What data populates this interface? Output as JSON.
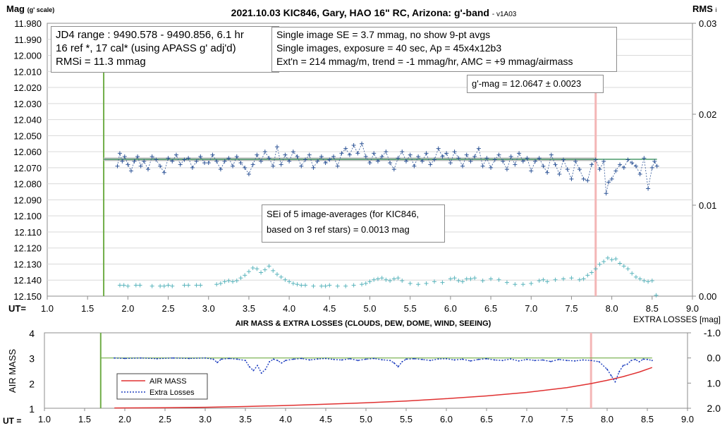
{
  "chart_data": [
    {
      "type": "scatter",
      "title": "2021.10.03 KIC846, Gary, HAO 16\" RC, Arizona: g'-band",
      "title_suffix": "- v1A03",
      "ylabel": "Mag",
      "ylabel_sub": "(g' scale)",
      "y2label": "RMS",
      "y2label_sub": "i",
      "xlabel": "UT=",
      "xlim": [
        1.0,
        9.0
      ],
      "ylim": [
        11.98,
        12.15
      ],
      "y_reversed": true,
      "y2lim": [
        0.0,
        0.03
      ],
      "x_ticks": [
        "1.0",
        "1.5",
        "2.0",
        "2.5",
        "3.0",
        "3.5",
        "4.0",
        "4.5",
        "5.0",
        "5.5",
        "6.0",
        "6.5",
        "7.0",
        "7.5",
        "8.0",
        "8.5",
        "9.0"
      ],
      "y_ticks": [
        "11.980",
        "11.990",
        "12.000",
        "12.010",
        "12.020",
        "12.030",
        "12.040",
        "12.050",
        "12.060",
        "12.070",
        "12.080",
        "12.090",
        "12.100",
        "12.110",
        "12.120",
        "12.130",
        "12.140",
        "12.150"
      ],
      "y2_ticks": [
        "0.03",
        "0.02",
        "0.01",
        "0.00"
      ],
      "grid": "horizontal",
      "series": [
        {
          "values_key": "g_mag_single",
          "color": "#2f5597",
          "marker": "+",
          "line": "dashed"
        },
        {
          "values_key": "rms",
          "color": "#5bb5bd",
          "marker": "+",
          "line": "none"
        }
      ],
      "g_mag_single": {
        "x": [
          1.87,
          1.9,
          1.93,
          1.96,
          2.0,
          2.04,
          2.08,
          2.12,
          2.16,
          2.2,
          2.25,
          2.3,
          2.35,
          2.4,
          2.45,
          2.5,
          2.55,
          2.6,
          2.65,
          2.7,
          2.75,
          2.8,
          2.85,
          2.9,
          2.95,
          3.0,
          3.05,
          3.1,
          3.15,
          3.2,
          3.25,
          3.3,
          3.35,
          3.4,
          3.45,
          3.5,
          3.55,
          3.6,
          3.65,
          3.7,
          3.75,
          3.8,
          3.85,
          3.9,
          3.95,
          4.0,
          4.05,
          4.1,
          4.15,
          4.2,
          4.25,
          4.3,
          4.35,
          4.4,
          4.45,
          4.5,
          4.55,
          4.6,
          4.65,
          4.7,
          4.75,
          4.8,
          4.85,
          4.9,
          4.95,
          5.0,
          5.05,
          5.1,
          5.15,
          5.2,
          5.25,
          5.3,
          5.35,
          5.4,
          5.45,
          5.5,
          5.55,
          5.6,
          5.65,
          5.7,
          5.75,
          5.8,
          5.85,
          5.9,
          5.95,
          6.0,
          6.05,
          6.1,
          6.15,
          6.2,
          6.25,
          6.3,
          6.35,
          6.4,
          6.45,
          6.5,
          6.55,
          6.6,
          6.65,
          6.7,
          6.75,
          6.8,
          6.85,
          6.9,
          6.95,
          7.0,
          7.05,
          7.1,
          7.15,
          7.2,
          7.25,
          7.3,
          7.35,
          7.4,
          7.45,
          7.5,
          7.55,
          7.6,
          7.65,
          7.7,
          7.75,
          7.8,
          7.85,
          7.9,
          7.93,
          7.96,
          8.0,
          8.05,
          8.1,
          8.15,
          8.2,
          8.25,
          8.3,
          8.35,
          8.4,
          8.45,
          8.5,
          8.53,
          8.56
        ],
        "y": [
          12.069,
          12.061,
          12.066,
          12.063,
          12.068,
          12.072,
          12.066,
          12.063,
          12.069,
          12.066,
          12.071,
          12.063,
          12.065,
          12.069,
          12.073,
          12.064,
          12.066,
          12.062,
          12.068,
          12.065,
          12.064,
          12.07,
          12.066,
          12.063,
          12.067,
          12.067,
          12.062,
          12.066,
          12.071,
          12.066,
          12.064,
          12.069,
          12.063,
          12.067,
          12.07,
          12.074,
          12.068,
          12.062,
          12.066,
          12.06,
          12.064,
          12.069,
          12.057,
          12.068,
          12.062,
          12.066,
          12.06,
          12.063,
          12.069,
          12.065,
          12.062,
          12.07,
          12.066,
          12.063,
          12.067,
          12.065,
          12.063,
          12.069,
          12.061,
          12.058,
          12.062,
          12.056,
          12.061,
          12.055,
          12.063,
          12.067,
          12.061,
          12.066,
          12.063,
          12.06,
          12.067,
          12.071,
          12.064,
          12.06,
          12.066,
          12.062,
          12.069,
          12.063,
          12.066,
          12.061,
          12.068,
          12.065,
          12.058,
          12.063,
          12.061,
          12.067,
          12.06,
          12.064,
          12.069,
          12.062,
          12.066,
          12.063,
          12.058,
          12.069,
          12.064,
          12.07,
          12.065,
          12.062,
          12.066,
          12.071,
          12.063,
          12.068,
          12.061,
          12.066,
          12.064,
          12.072,
          12.066,
          12.064,
          12.069,
          12.073,
          12.062,
          12.068,
          12.074,
          12.065,
          12.071,
          12.077,
          12.066,
          12.071,
          12.077,
          12.078,
          12.068,
          12.065,
          12.071,
          12.066,
          12.086,
          12.079,
          12.077,
          12.072,
          12.068,
          12.07,
          12.065,
          12.067,
          12.069,
          12.074,
          12.064,
          12.083,
          12.07,
          12.066,
          12.069
        ],
        "note_x_ticks_are_UT_hours": ""
      },
      "g_mag_mean": 12.0647,
      "rms": {
        "x": [
          1.9,
          1.95,
          2.0,
          2.1,
          2.15,
          2.3,
          2.4,
          2.45,
          2.5,
          2.55,
          2.7,
          2.75,
          2.85,
          2.9,
          3.1,
          3.15,
          3.2,
          3.25,
          3.3,
          3.35,
          3.4,
          3.45,
          3.5,
          3.55,
          3.6,
          3.65,
          3.7,
          3.75,
          3.8,
          3.85,
          3.9,
          3.95,
          4.0,
          4.05,
          4.1,
          4.15,
          4.2,
          4.3,
          4.4,
          4.45,
          4.5,
          4.6,
          4.7,
          4.8,
          4.9,
          4.95,
          5.0,
          5.05,
          5.1,
          5.15,
          5.2,
          5.25,
          5.3,
          5.35,
          5.4,
          5.5,
          5.6,
          5.7,
          5.8,
          5.9,
          6.0,
          6.05,
          6.1,
          6.15,
          6.2,
          6.25,
          6.3,
          6.4,
          6.5,
          6.6,
          6.7,
          6.8,
          6.9,
          7.0,
          7.1,
          7.15,
          7.2,
          7.3,
          7.4,
          7.5,
          7.6,
          7.65,
          7.7,
          7.75,
          7.8,
          7.85,
          7.9,
          7.95,
          8.0,
          8.05,
          8.1,
          8.15,
          8.2,
          8.25,
          8.3,
          8.35,
          8.4,
          8.45,
          8.5,
          8.55
        ],
        "y": [
          0.0012,
          0.0012,
          0.0011,
          0.0012,
          0.0012,
          0.0011,
          0.0011,
          0.0011,
          0.0012,
          0.0011,
          0.0012,
          0.0012,
          0.0012,
          0.0012,
          0.0013,
          0.0014,
          0.0016,
          0.0017,
          0.0016,
          0.0017,
          0.002,
          0.0023,
          0.0027,
          0.0031,
          0.003,
          0.0026,
          0.0029,
          0.0033,
          0.0028,
          0.0024,
          0.0021,
          0.0018,
          0.0016,
          0.0014,
          0.0013,
          0.0012,
          0.0012,
          0.0011,
          0.0011,
          0.0011,
          0.0012,
          0.0011,
          0.0011,
          0.0012,
          0.0013,
          0.0014,
          0.0016,
          0.0018,
          0.0019,
          0.002,
          0.0018,
          0.0017,
          0.0019,
          0.002,
          0.0017,
          0.0014,
          0.0013,
          0.0014,
          0.0016,
          0.0015,
          0.0019,
          0.002,
          0.0017,
          0.0016,
          0.0019,
          0.0019,
          0.002,
          0.0017,
          0.0019,
          0.0018,
          0.0015,
          0.0013,
          0.0013,
          0.0014,
          0.0017,
          0.0018,
          0.0016,
          0.0018,
          0.0019,
          0.002,
          0.0018,
          0.0019,
          0.0023,
          0.0026,
          0.003,
          0.0035,
          0.0038,
          0.0042,
          0.004,
          0.0041,
          0.0036,
          0.0033,
          0.003,
          0.0025,
          0.0021,
          0.0019,
          0.0017,
          0.0016,
          0.0017,
          0.0001
        ]
      },
      "vertical_markers": [
        {
          "x": 1.7,
          "color": "#70ad47"
        },
        {
          "x": 7.8,
          "color": "#f4b6b6"
        }
      ],
      "boxes": {
        "info_left": [
          "JD4 range : 9490.578 - 9490.856,  6.1  hr",
          "16 ref *, 17 cal* (using APASS g' adj'd)",
          "RMSi = 11.3 mmag"
        ],
        "info_right": [
          "Single image SE = 3.7 mmag, no show  9-pt avgs",
          "Single images, exposure = 40 sec, Ap = 45x4x12b3",
          "Ext'n = 214 mmag/m, trend = -1 mmag/hr, AMC = +9 mmag/airmass"
        ],
        "gmag": "g'-mag = 12.0647 ± 0.0023",
        "sei": [
          "SEi of 5 image-averages (for KIC846,",
          "based on 3 ref stars) = 0.0013 mag"
        ]
      }
    },
    {
      "type": "line",
      "title": "AIR MASS & EXTRA LOSSES (CLOUDS, DEW, DOME, WIND, SEEING)",
      "ylabel": "AIR MASS",
      "y2label": "EXTRA LOSSES [mag]",
      "xlabel": "UT =",
      "xlim": [
        1.0,
        9.0
      ],
      "ylim": [
        1,
        4
      ],
      "y2lim": [
        -1.0,
        2.0
      ],
      "y2_reversed": true,
      "x_ticks": [
        "1.0",
        "1.5",
        "2.0",
        "2.5",
        "3.0",
        "3.5",
        "4.0",
        "4.5",
        "5.0",
        "5.5",
        "6.0",
        "6.5",
        "7.0",
        "7.5",
        "8.0",
        "8.5",
        "9.0"
      ],
      "y_ticks": [
        "1",
        "2",
        "3",
        "4"
      ],
      "y2_ticks": [
        "-1.0",
        "0.0",
        "1.0",
        "2.0"
      ],
      "legend": [
        "AIR MASS",
        "Extra Losses"
      ],
      "legend_placement": "bottom-left",
      "series": [
        {
          "name": "AIR MASS",
          "color": "#e03131",
          "x": [
            1.87,
            2.5,
            3.0,
            3.5,
            4.0,
            4.5,
            5.0,
            5.5,
            6.0,
            6.5,
            7.0,
            7.5,
            7.8,
            8.0,
            8.2,
            8.4,
            8.56
          ],
          "values": [
            1.01,
            1.02,
            1.04,
            1.07,
            1.11,
            1.16,
            1.22,
            1.29,
            1.38,
            1.49,
            1.63,
            1.82,
            1.98,
            2.11,
            2.26,
            2.44,
            2.62
          ]
        },
        {
          "name": "Extra Losses",
          "color": "#1f3fbf",
          "x": [
            1.87,
            2.0,
            2.2,
            2.4,
            2.6,
            2.8,
            3.0,
            3.1,
            3.15,
            3.2,
            3.3,
            3.4,
            3.5,
            3.55,
            3.6,
            3.65,
            3.7,
            3.75,
            3.8,
            3.85,
            3.9,
            3.95,
            4.0,
            4.1,
            4.2,
            4.3,
            4.4,
            4.5,
            4.6,
            4.7,
            4.8,
            4.9,
            5.0,
            5.1,
            5.2,
            5.3,
            5.35,
            5.4,
            5.45,
            5.5,
            5.6,
            5.7,
            5.8,
            5.9,
            6.0,
            6.1,
            6.2,
            6.3,
            6.4,
            6.5,
            6.6,
            6.7,
            6.8,
            6.9,
            7.0,
            7.1,
            7.2,
            7.3,
            7.4,
            7.5,
            7.6,
            7.7,
            7.8,
            7.9,
            8.0,
            8.05,
            8.1,
            8.15,
            8.2,
            8.25,
            8.3,
            8.35,
            8.4,
            8.45,
            8.5,
            8.56
          ],
          "values": [
            0.0,
            0.02,
            0.0,
            0.03,
            0.0,
            0.02,
            0.0,
            0.05,
            0.18,
            0.05,
            0.02,
            0.05,
            0.1,
            0.35,
            0.5,
            0.3,
            0.6,
            0.45,
            0.15,
            0.05,
            0.1,
            0.2,
            0.1,
            0.05,
            0.02,
            0.08,
            0.04,
            0.02,
            0.06,
            0.08,
            0.03,
            0.1,
            0.05,
            0.02,
            0.07,
            0.1,
            0.2,
            0.35,
            0.15,
            0.05,
            0.03,
            0.06,
            0.1,
            0.04,
            0.03,
            0.08,
            0.05,
            0.12,
            0.06,
            0.03,
            0.08,
            0.1,
            0.04,
            0.12,
            0.06,
            0.1,
            0.08,
            0.14,
            0.06,
            0.1,
            0.12,
            0.08,
            0.1,
            0.15,
            0.45,
            0.7,
            0.95,
            0.55,
            0.3,
            0.25,
            0.1,
            0.06,
            0.15,
            0.05,
            0.06,
            0.1
          ]
        },
        {
          "name": "",
          "color": "#70ad47",
          "x": [
            1.7,
            8.56
          ],
          "values": [
            3.0,
            3.0
          ]
        }
      ],
      "vertical_markers": [
        {
          "x": 1.7,
          "color": "#70ad47"
        },
        {
          "x": 7.8,
          "color": "#f4b6b6"
        }
      ]
    }
  ]
}
